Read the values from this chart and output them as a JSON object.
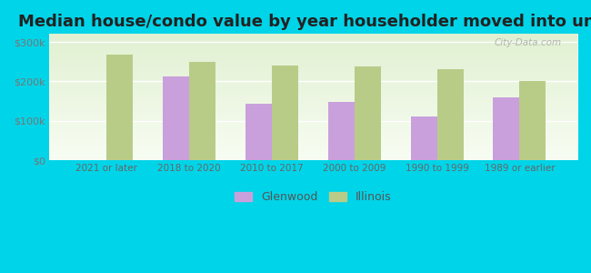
{
  "title": "Median house/condo value by year householder moved into unit",
  "categories": [
    "2021 or later",
    "2018 to 2020",
    "2010 to 2017",
    "2000 to 2009",
    "1990 to 1999",
    "1989 or earlier"
  ],
  "glenwood_values": [
    0,
    212000,
    143000,
    148000,
    110000,
    160000
  ],
  "illinois_values": [
    268000,
    250000,
    240000,
    238000,
    230000,
    200000
  ],
  "glenwood_color": "#c9a0dc",
  "illinois_color": "#b8cc88",
  "background_outer": "#00d4e8",
  "background_inner_top": "#e8f0d8",
  "background_inner_bottom": "#f5faf0",
  "ylim": [
    0,
    320000
  ],
  "yticks": [
    0,
    100000,
    200000,
    300000
  ],
  "ytick_labels": [
    "$0",
    "$100k",
    "$200k",
    "$300k"
  ],
  "legend_labels": [
    "Glenwood",
    "Illinois"
  ],
  "title_fontsize": 13,
  "bar_width": 0.32,
  "watermark": "City-Data.com"
}
